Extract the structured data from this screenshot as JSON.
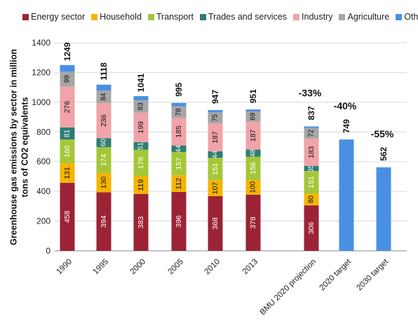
{
  "chart_data": {
    "type": "bar",
    "stacked": true,
    "ylabel": "Greenhouse gas emissions by sector in million tons of CO2 equivalents",
    "ylim": [
      0,
      1400
    ],
    "yticks": [
      0,
      200,
      400,
      600,
      800,
      1000,
      1200,
      1400
    ],
    "categories": [
      "1990",
      "1995",
      "2000",
      "2005",
      "2010",
      "2013",
      "BMU 2020 projection",
      "2020 target",
      "2030 target"
    ],
    "series": [
      {
        "name": "Energy sector",
        "color": "#9b2335",
        "label_color": "#ffffff",
        "values": [
          458,
          394,
          383,
          396,
          368,
          378,
          306,
          null,
          null
        ]
      },
      {
        "name": "Household",
        "color": "#f5b400",
        "label_color": "#111111",
        "values": [
          131,
          130,
          119,
          112,
          107,
          100,
          80,
          null,
          null
        ]
      },
      {
        "name": "Transport",
        "color": "#a4c739",
        "label_color": "#ffffff",
        "values": [
          160,
          174,
          178,
          157,
          151,
          156,
          151,
          null,
          null
        ]
      },
      {
        "name": "Trades and services",
        "color": "#2e7d73",
        "label_color": "#ffffff",
        "values": [
          81,
          60,
          51,
          44,
          44,
          48,
          35,
          null,
          null
        ]
      },
      {
        "name": "Industry",
        "color": "#f0a3a8",
        "label_color": "#111111",
        "values": [
          276,
          236,
          199,
          185,
          187,
          187,
          183,
          null,
          null
        ]
      },
      {
        "name": "Agriculture",
        "color": "#a6a6a6",
        "label_color": "#111111",
        "values": [
          99,
          84,
          83,
          78,
          75,
          69,
          72,
          null,
          null
        ]
      },
      {
        "name": "Others",
        "color": "#4a90e2",
        "label_color": "#111111",
        "values": [
          45,
          40,
          28,
          23,
          15,
          13,
          10,
          749,
          562
        ]
      }
    ],
    "totals": [
      "1249",
      "1118",
      "1041",
      "995",
      "947",
      "951",
      "837",
      "749",
      "562"
    ],
    "reductions": [
      null,
      null,
      null,
      null,
      null,
      null,
      "-33%",
      "-40%",
      "-55%"
    ]
  }
}
